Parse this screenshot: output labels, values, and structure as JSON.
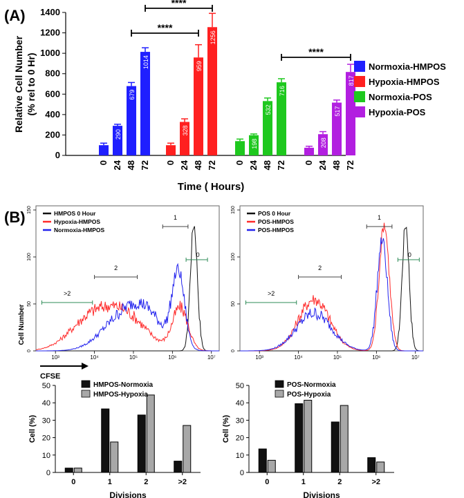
{
  "panel_labels": {
    "a": "(A)",
    "b": "(B)"
  },
  "chart_data": [
    {
      "id": "A",
      "type": "bar",
      "title": "",
      "xlabel": "Time ( Hours)",
      "ylabel_lines": [
        "Relative Cell Number",
        "(% rel to 0 Hr)"
      ],
      "ylim": [
        0,
        1400
      ],
      "yticks": [
        0,
        200,
        400,
        600,
        800,
        1000,
        1200,
        1400
      ],
      "time_labels": [
        "0",
        "24",
        "48",
        "72"
      ],
      "series": [
        {
          "name": "Normoxia-HMPOS",
          "color": "#1f1fff",
          "values": [
            100,
            290,
            679,
            1014
          ],
          "errors": [
            20,
            15,
            35,
            40
          ],
          "labels": [
            "",
            "290",
            "679",
            "1014"
          ]
        },
        {
          "name": "Hypoxia-HMPOS",
          "color": "#ff2020",
          "values": [
            100,
            328,
            959,
            1256
          ],
          "errors": [
            20,
            30,
            125,
            135
          ],
          "labels": [
            "",
            "328",
            "959",
            "1256"
          ]
        },
        {
          "name": "Normoxia-POS",
          "color": "#1ec81e",
          "values": [
            140,
            198,
            532,
            716
          ],
          "errors": [
            20,
            12,
            30,
            35
          ],
          "labels": [
            "",
            "198",
            "532",
            "716"
          ]
        },
        {
          "name": "Hypoxia-POS",
          "color": "#b21fe0",
          "values": [
            75,
            208,
            517,
            817
          ],
          "errors": [
            15,
            25,
            25,
            75
          ],
          "labels": [
            "",
            "208",
            "517",
            "817"
          ]
        }
      ],
      "significance": [
        {
          "label": "****",
          "from": "Normoxia-HMPOS 72",
          "to": "Hypoxia-HMPOS 72"
        },
        {
          "label": "****",
          "from": "Normoxia-HMPOS 48",
          "to": "Hypoxia-HMPOS 48"
        },
        {
          "label": "****",
          "from": "Normoxia-POS 72",
          "to": "Hypoxia-POS 72"
        }
      ]
    },
    {
      "id": "B-flow-left",
      "type": "line",
      "title": "",
      "xlabel": "CFSE",
      "ylabel": "Cell Number",
      "yticks": [
        "0",
        "50",
        "100",
        "150"
      ],
      "ylim": [
        0,
        150
      ],
      "xticks": [
        "10³",
        "10⁴",
        "10⁵",
        "10⁶",
        "10⁷"
      ],
      "xlim_log10": [
        2.5,
        7.2
      ],
      "legend": [
        "HMPOS 0 Hour",
        "Hypoxia-HMPOS",
        "Normoxia-HMPOS"
      ],
      "gates": [
        "0",
        "1",
        "2",
        ">2"
      ],
      "series": [
        {
          "name": "HMPOS 0 Hour",
          "color": "#111111",
          "peaks": [
            {
              "center": 6.55,
              "width": 0.09,
              "height": 135
            }
          ]
        },
        {
          "name": "Hypoxia-HMPOS",
          "color": "#ff2a2a",
          "peaks": [
            {
              "center": 6.2,
              "width": 0.2,
              "height": 45
            },
            {
              "center": 4.8,
              "width": 0.55,
              "height": 35
            },
            {
              "center": 3.9,
              "width": 0.55,
              "height": 32
            }
          ]
        },
        {
          "name": "Normoxia-HMPOS",
          "color": "#2222ee",
          "peaks": [
            {
              "center": 6.15,
              "width": 0.16,
              "height": 80
            },
            {
              "center": 5.3,
              "width": 0.45,
              "height": 38
            },
            {
              "center": 4.6,
              "width": 0.5,
              "height": 28
            }
          ]
        }
      ]
    },
    {
      "id": "B-flow-right",
      "type": "line",
      "title": "",
      "xlabel": "",
      "ylabel": "",
      "yticks": [
        "0",
        "50",
        "100",
        "150"
      ],
      "ylim": [
        0,
        150
      ],
      "xticks": [
        "10³",
        "10⁴",
        "10⁵",
        "10⁶",
        "10⁷"
      ],
      "xlim_log10": [
        2.5,
        7.2
      ],
      "legend": [
        "POS 0 Hour",
        "POS-HMPOS",
        "POS-HMPOS"
      ],
      "gates": [
        "0",
        "1",
        "2",
        ">2"
      ],
      "series": [
        {
          "name": "POS 0 Hour",
          "color": "#111111",
          "peaks": [
            {
              "center": 6.75,
              "width": 0.09,
              "height": 135
            }
          ]
        },
        {
          "name": "POS-HMPOS",
          "color": "#ff2a2a",
          "peaks": [
            {
              "center": 6.2,
              "width": 0.13,
              "height": 135
            },
            {
              "center": 4.4,
              "width": 0.4,
              "height": 55
            }
          ]
        },
        {
          "name": "POS-HMPOS",
          "color": "#2222ee",
          "peaks": [
            {
              "center": 6.15,
              "width": 0.13,
              "height": 118
            },
            {
              "center": 4.4,
              "width": 0.45,
              "height": 40
            }
          ]
        }
      ]
    },
    {
      "id": "B-bar-left",
      "type": "bar",
      "title": "",
      "xlabel": "Divisions",
      "ylabel": "Cell (%)",
      "ylim": [
        0,
        50
      ],
      "yticks": [
        0,
        10,
        20,
        30,
        40,
        50
      ],
      "categories": [
        "0",
        "1",
        "2",
        ">2"
      ],
      "series": [
        {
          "name": "HMPOS-Normoxia",
          "color": "#111111",
          "values": [
            2.5,
            36.5,
            33,
            6.5
          ]
        },
        {
          "name": "HMPOS-Hypoxia",
          "color": "#a8a8a8",
          "values": [
            2.5,
            17.5,
            44.5,
            27
          ]
        }
      ]
    },
    {
      "id": "B-bar-right",
      "type": "bar",
      "title": "",
      "xlabel": "Divisions",
      "ylabel": "Cell (%)",
      "ylim": [
        0,
        50
      ],
      "yticks": [
        0,
        10,
        20,
        30,
        40,
        50
      ],
      "categories": [
        "0",
        "1",
        "2",
        ">2"
      ],
      "series": [
        {
          "name": "POS-Normoxia",
          "color": "#111111",
          "values": [
            13.5,
            39.5,
            29,
            8.5
          ]
        },
        {
          "name": "POS-Hypoxia",
          "color": "#a8a8a8",
          "values": [
            7,
            41.5,
            38.5,
            6
          ]
        }
      ]
    }
  ]
}
